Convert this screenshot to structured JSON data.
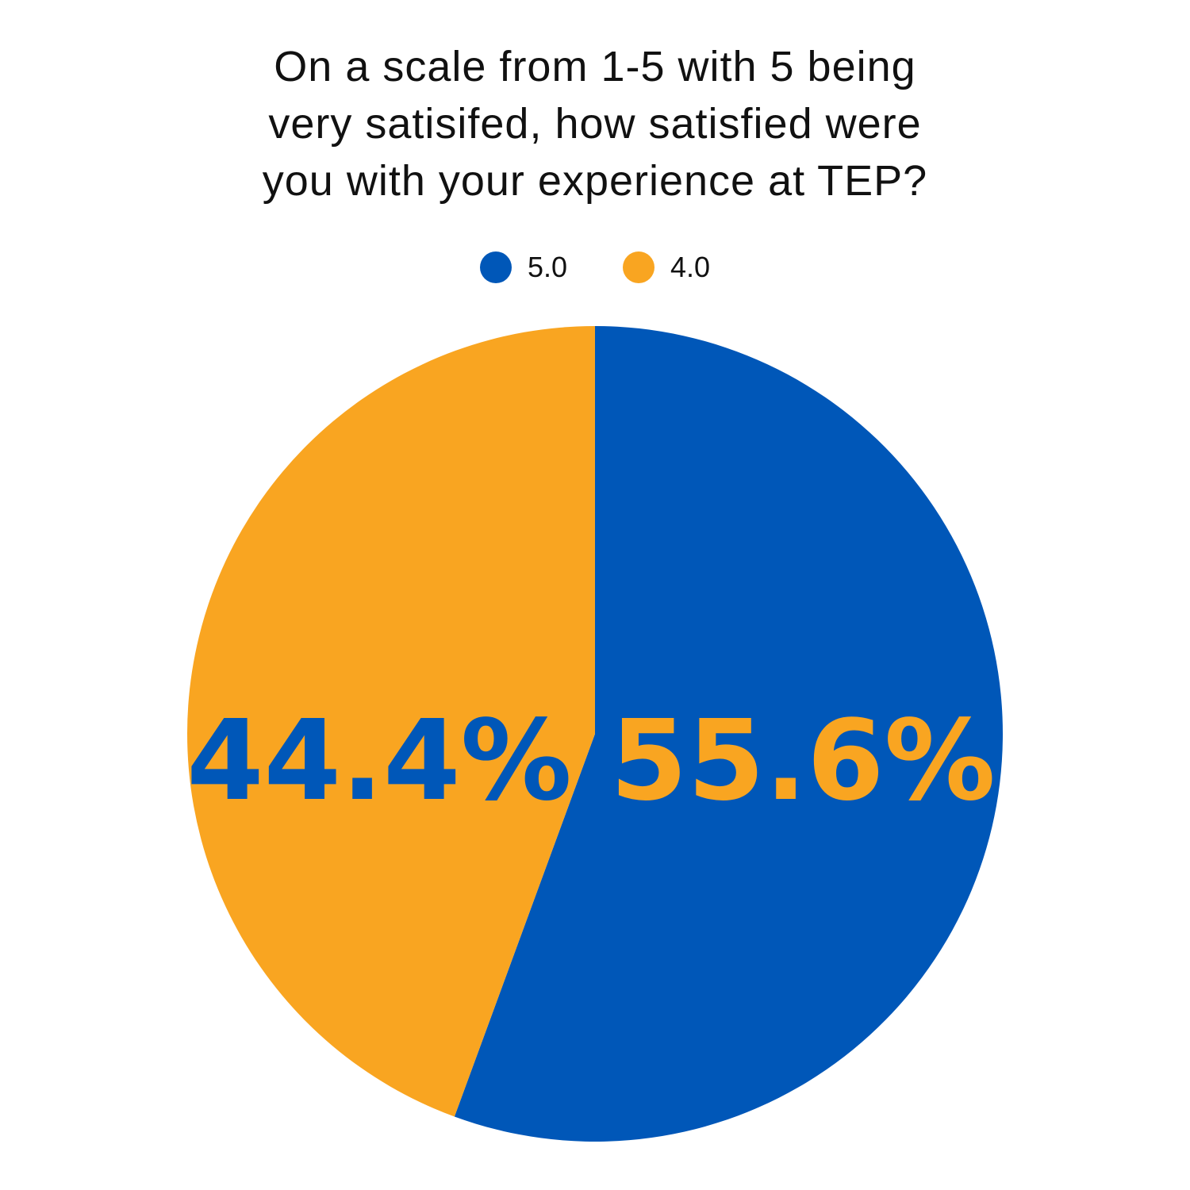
{
  "chart_data": {
    "type": "pie",
    "title_lines": [
      "On a scale from 1-5 with 5 being",
      "very satisifed, how satisfied were",
      "you with your experience at TEP?"
    ],
    "legend_position": "top-center",
    "slices": [
      {
        "name": "5.0",
        "value": 55.6,
        "label": "55.6%",
        "color": "#0057B8",
        "label_color": "#F9A521"
      },
      {
        "name": "4.0",
        "value": 44.4,
        "label": "44.4%",
        "color": "#F9A521",
        "label_color": "#0057B8"
      }
    ]
  }
}
